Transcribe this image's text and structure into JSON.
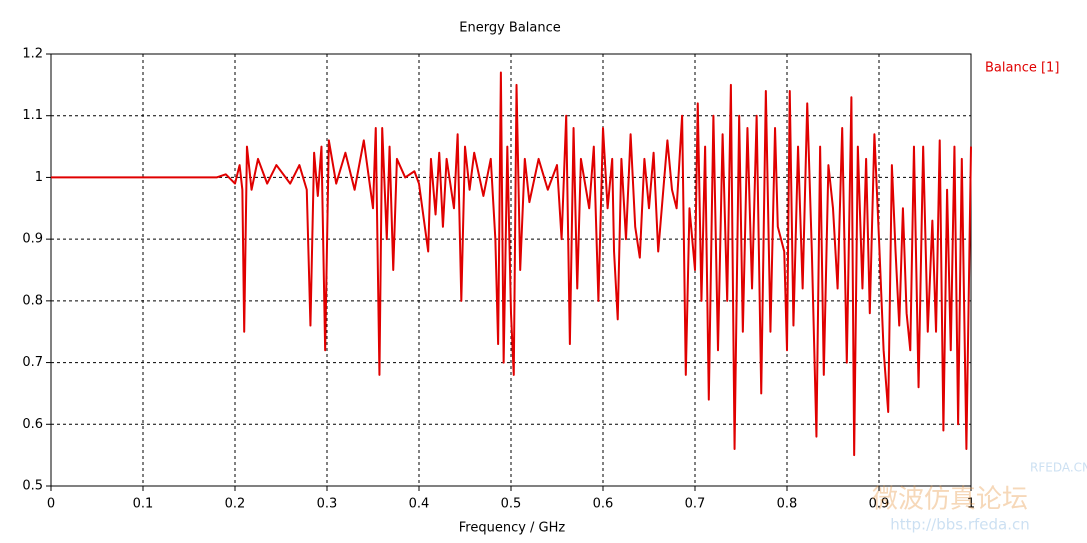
{
  "chart_data": {
    "type": "line",
    "title": "Energy Balance",
    "xlabel": "Frequency / GHz",
    "xlim": [
      0,
      1
    ],
    "ylim": [
      0.5,
      1.2
    ],
    "xticks": [
      0,
      0.1,
      0.2,
      0.3,
      0.4,
      0.5,
      0.6,
      0.7,
      0.8,
      0.9,
      1
    ],
    "yticks": [
      0.5,
      0.6,
      0.7,
      0.8,
      0.9,
      1,
      1.1,
      1.2
    ],
    "grid": true,
    "legend": "right",
    "watermark": [
      "RFEDA.CN",
      "微波仿真论坛",
      "http://bbs.rfeda.cn"
    ],
    "x": [
      0,
      0.1,
      0.18,
      0.19,
      0.2,
      0.205,
      0.208,
      0.21,
      0.213,
      0.218,
      0.225,
      0.235,
      0.245,
      0.26,
      0.27,
      0.278,
      0.282,
      0.286,
      0.29,
      0.294,
      0.298,
      0.302,
      0.31,
      0.32,
      0.33,
      0.34,
      0.35,
      0.353,
      0.357,
      0.36,
      0.365,
      0.368,
      0.372,
      0.376,
      0.385,
      0.395,
      0.4,
      0.41,
      0.413,
      0.418,
      0.422,
      0.426,
      0.43,
      0.438,
      0.442,
      0.446,
      0.45,
      0.455,
      0.46,
      0.47,
      0.478,
      0.483,
      0.486,
      0.489,
      0.492,
      0.496,
      0.5,
      0.503,
      0.506,
      0.51,
      0.515,
      0.52,
      0.53,
      0.54,
      0.55,
      0.555,
      0.56,
      0.564,
      0.568,
      0.572,
      0.576,
      0.585,
      0.59,
      0.595,
      0.6,
      0.605,
      0.61,
      0.612,
      0.616,
      0.62,
      0.625,
      0.63,
      0.635,
      0.64,
      0.645,
      0.65,
      0.655,
      0.66,
      0.67,
      0.675,
      0.68,
      0.686,
      0.69,
      0.694,
      0.7,
      0.703,
      0.707,
      0.711,
      0.715,
      0.72,
      0.725,
      0.73,
      0.735,
      0.739,
      0.743,
      0.748,
      0.752,
      0.757,
      0.762,
      0.767,
      0.772,
      0.777,
      0.782,
      0.787,
      0.79,
      0.797,
      0.8,
      0.803,
      0.807,
      0.812,
      0.817,
      0.822,
      0.827,
      0.832,
      0.836,
      0.84,
      0.845,
      0.85,
      0.855,
      0.86,
      0.865,
      0.87,
      0.873,
      0.877,
      0.882,
      0.886,
      0.89,
      0.895,
      0.9,
      0.905,
      0.91,
      0.914,
      0.918,
      0.922,
      0.926,
      0.93,
      0.934,
      0.938,
      0.943,
      0.948,
      0.953,
      0.958,
      0.962,
      0.966,
      0.97,
      0.974,
      0.978,
      0.982,
      0.986,
      0.99,
      0.995,
      1
    ],
    "series": [
      {
        "name": "Balance [1]",
        "color": "#e00000",
        "values": [
          1,
          1,
          1,
          1.005,
          0.99,
          1.02,
          0.98,
          0.75,
          1.05,
          0.98,
          1.03,
          0.99,
          1.02,
          0.99,
          1.02,
          0.98,
          0.76,
          1.04,
          0.97,
          1.05,
          0.72,
          1.06,
          0.99,
          1.04,
          0.98,
          1.06,
          0.95,
          1.08,
          0.68,
          1.08,
          0.9,
          1.05,
          0.85,
          1.03,
          1,
          1.01,
          0.99,
          0.88,
          1.03,
          0.94,
          1.04,
          0.92,
          1.03,
          0.95,
          1.07,
          0.8,
          1.05,
          0.98,
          1.04,
          0.97,
          1.03,
          0.9,
          0.73,
          1.17,
          0.7,
          1.05,
          0.78,
          0.68,
          1.15,
          0.85,
          1.03,
          0.96,
          1.03,
          0.98,
          1.02,
          0.9,
          1.1,
          0.73,
          1.08,
          0.82,
          1.03,
          0.95,
          1.05,
          0.8,
          1.08,
          0.95,
          1.03,
          0.88,
          0.77,
          1.03,
          0.9,
          1.07,
          0.92,
          0.87,
          1.03,
          0.95,
          1.04,
          0.88,
          1.06,
          0.98,
          0.95,
          1.1,
          0.68,
          0.95,
          0.85,
          1.12,
          0.8,
          1.05,
          0.64,
          1.1,
          0.72,
          1.07,
          0.8,
          1.15,
          0.56,
          1.1,
          0.75,
          1.08,
          0.82,
          1.1,
          0.65,
          1.14,
          0.75,
          1.08,
          0.92,
          0.88,
          0.72,
          1.14,
          0.76,
          1.05,
          0.82,
          1.12,
          0.88,
          0.58,
          1.05,
          0.68,
          1.02,
          0.95,
          0.82,
          1.08,
          0.7,
          1.13,
          0.55,
          1.05,
          0.82,
          1.03,
          0.78,
          1.07,
          0.9,
          0.72,
          0.62,
          1.02,
          0.88,
          0.76,
          0.95,
          0.78,
          0.72,
          1.05,
          0.66,
          1.05,
          0.75,
          0.93,
          0.75,
          1.06,
          0.59,
          0.98,
          0.72,
          1.05,
          0.6,
          1.03,
          0.56,
          1.05
        ]
      }
    ]
  }
}
